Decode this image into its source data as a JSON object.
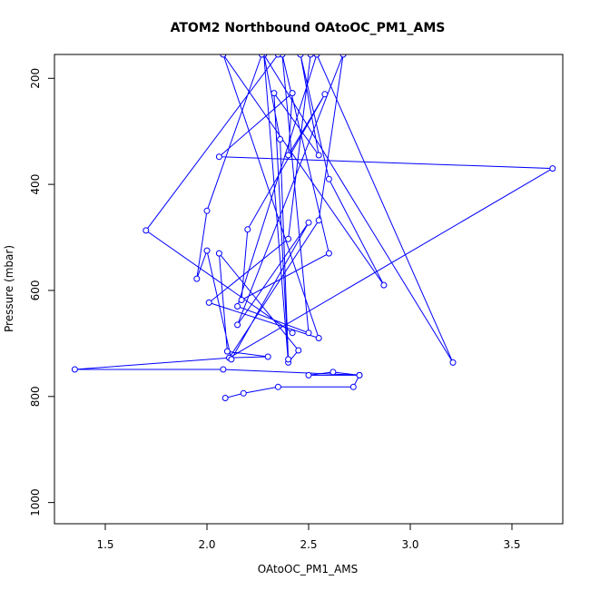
{
  "chart_data": {
    "type": "line",
    "title": "ATOM2 Northbound OAtoOC_PM1_AMS",
    "xlabel": "OAtoOC_PM1_AMS",
    "ylabel": "Pressure (mbar)",
    "xlim": [
      1.25,
      3.75
    ],
    "ylim": [
      1040,
      155
    ],
    "y_reversed": true,
    "x_ticks": [
      "1.5",
      "2.0",
      "2.5",
      "3.0",
      "3.5"
    ],
    "y_ticks": [
      "200",
      "400",
      "600",
      "800",
      "1000"
    ],
    "grid": false,
    "series_color": "#0000ff",
    "series": [
      {
        "markers": "open-circle",
        "points": [
          {
            "x": 2.09,
            "y": 803
          },
          {
            "x": 2.18,
            "y": 794
          },
          {
            "x": 2.35,
            "y": 782
          },
          {
            "x": 2.72,
            "y": 782
          },
          {
            "x": 2.75,
            "y": 760
          },
          {
            "x": 2.5,
            "y": 760
          },
          {
            "x": 2.62,
            "y": 754
          },
          {
            "x": 2.75,
            "y": 760
          },
          {
            "x": 2.08,
            "y": 749
          },
          {
            "x": 1.35,
            "y": 749
          },
          {
            "x": 2.11,
            "y": 727
          },
          {
            "x": 2.3,
            "y": 725
          },
          {
            "x": 2.1,
            "y": 715
          },
          {
            "x": 2.06,
            "y": 530
          },
          {
            "x": 2.45,
            "y": 713
          },
          {
            "x": 2.4,
            "y": 736
          },
          {
            "x": 2.28,
            "y": 155
          },
          {
            "x": 2.36,
            "y": 315
          },
          {
            "x": 2.4,
            "y": 730
          },
          {
            "x": 2.33,
            "y": 228
          },
          {
            "x": 2.55,
            "y": 345
          },
          {
            "x": 2.46,
            "y": 155
          },
          {
            "x": 2.6,
            "y": 390
          },
          {
            "x": 2.87,
            "y": 590
          },
          {
            "x": 2.08,
            "y": 155
          },
          {
            "x": 2.55,
            "y": 690
          },
          {
            "x": 2.01,
            "y": 623
          },
          {
            "x": 2.4,
            "y": 503
          },
          {
            "x": 2.51,
            "y": 155
          },
          {
            "x": 2.28,
            "y": 155
          },
          {
            "x": 3.21,
            "y": 736
          },
          {
            "x": 2.54,
            "y": 155
          },
          {
            "x": 2.15,
            "y": 630
          },
          {
            "x": 2.5,
            "y": 680
          },
          {
            "x": 2.37,
            "y": 155
          },
          {
            "x": 2.6,
            "y": 530
          },
          {
            "x": 2.17,
            "y": 618
          },
          {
            "x": 2.2,
            "y": 485
          },
          {
            "x": 2.58,
            "y": 230
          },
          {
            "x": 2.4,
            "y": 345
          },
          {
            "x": 2.42,
            "y": 228
          },
          {
            "x": 2.06,
            "y": 348
          },
          {
            "x": 3.7,
            "y": 370
          },
          {
            "x": 2.11,
            "y": 727
          },
          {
            "x": 2.55,
            "y": 468
          },
          {
            "x": 2.67,
            "y": 155
          },
          {
            "x": 2.15,
            "y": 665
          },
          {
            "x": 2.5,
            "y": 472
          },
          {
            "x": 2.12,
            "y": 730
          },
          {
            "x": 2.0,
            "y": 525
          },
          {
            "x": 1.95,
            "y": 578
          },
          {
            "x": 2.0,
            "y": 450
          },
          {
            "x": 2.27,
            "y": 155
          },
          {
            "x": 2.35,
            "y": 155
          },
          {
            "x": 1.7,
            "y": 487
          },
          {
            "x": 2.42,
            "y": 680
          }
        ]
      }
    ]
  }
}
